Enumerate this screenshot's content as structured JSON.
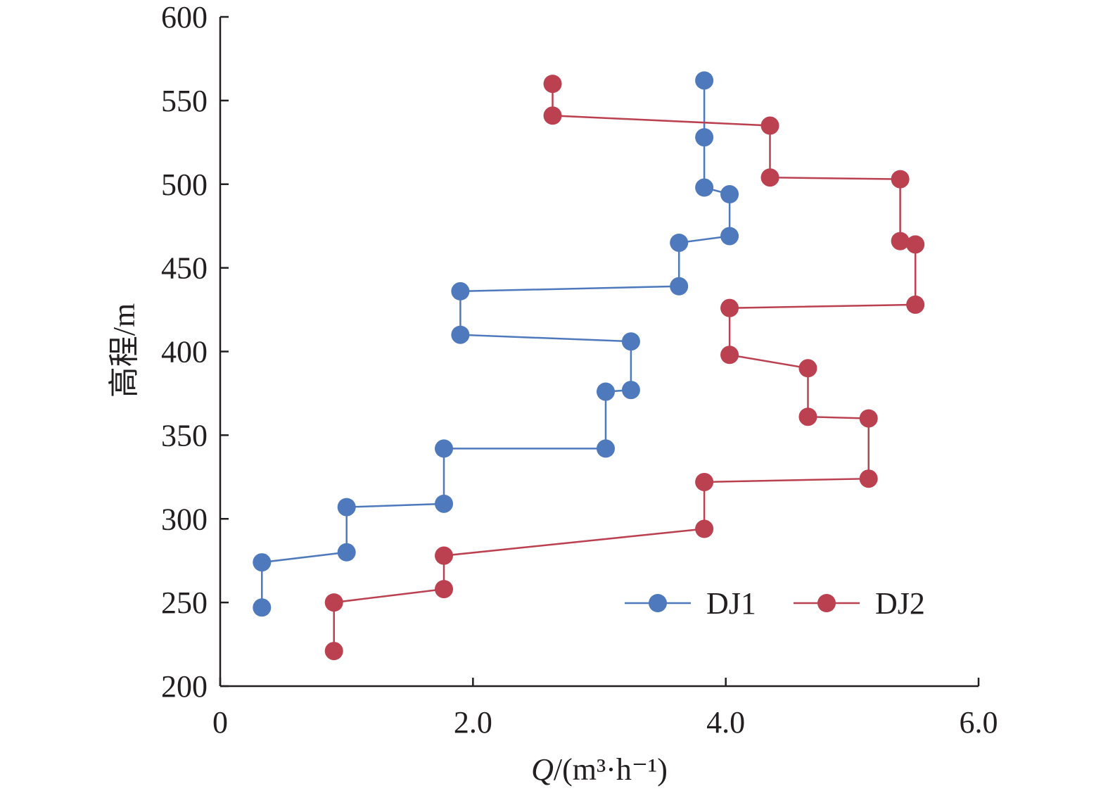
{
  "chart_data": {
    "type": "line",
    "title": "",
    "xlabel": {
      "italic": "Q",
      "rest": "/(m³·h⁻¹)"
    },
    "ylabel": "高程/m",
    "xlim": [
      0,
      6.0
    ],
    "ylim": [
      200,
      600
    ],
    "xticks": [
      0,
      2.0,
      4.0,
      6.0
    ],
    "xtick_labels": [
      "0",
      "2.0",
      "4.0",
      "6.0"
    ],
    "yticks": [
      200,
      250,
      300,
      350,
      400,
      450,
      500,
      550,
      600
    ],
    "ytick_labels": [
      "200",
      "250",
      "300",
      "350",
      "400",
      "450",
      "500",
      "550",
      "600"
    ],
    "grid": false,
    "legend_position": "bottom-right",
    "series": [
      {
        "name": "DJ1",
        "color": "#4e79bd",
        "points": [
          [
            0.33,
            247
          ],
          [
            0.33,
            274
          ],
          [
            1.0,
            280
          ],
          [
            1.0,
            307
          ],
          [
            1.77,
            309
          ],
          [
            1.77,
            342
          ],
          [
            3.05,
            342
          ],
          [
            3.05,
            376
          ],
          [
            3.25,
            377
          ],
          [
            3.25,
            406
          ],
          [
            1.9,
            410
          ],
          [
            1.9,
            436
          ],
          [
            3.63,
            439
          ],
          [
            3.63,
            465
          ],
          [
            4.03,
            469
          ],
          [
            4.03,
            494
          ],
          [
            3.83,
            498
          ],
          [
            3.83,
            528
          ],
          [
            3.83,
            562
          ]
        ]
      },
      {
        "name": "DJ2",
        "color": "#bb4050",
        "points": [
          [
            0.9,
            221
          ],
          [
            0.9,
            250
          ],
          [
            1.77,
            258
          ],
          [
            1.77,
            278
          ],
          [
            3.83,
            294
          ],
          [
            3.83,
            322
          ],
          [
            5.13,
            324
          ],
          [
            5.13,
            360
          ],
          [
            4.65,
            361
          ],
          [
            4.65,
            390
          ],
          [
            4.03,
            398
          ],
          [
            4.03,
            426
          ],
          [
            5.5,
            428
          ],
          [
            5.5,
            464
          ],
          [
            5.38,
            466
          ],
          [
            5.38,
            503
          ],
          [
            4.35,
            504
          ],
          [
            4.35,
            535
          ],
          [
            2.63,
            541
          ],
          [
            2.63,
            560
          ]
        ]
      }
    ]
  }
}
